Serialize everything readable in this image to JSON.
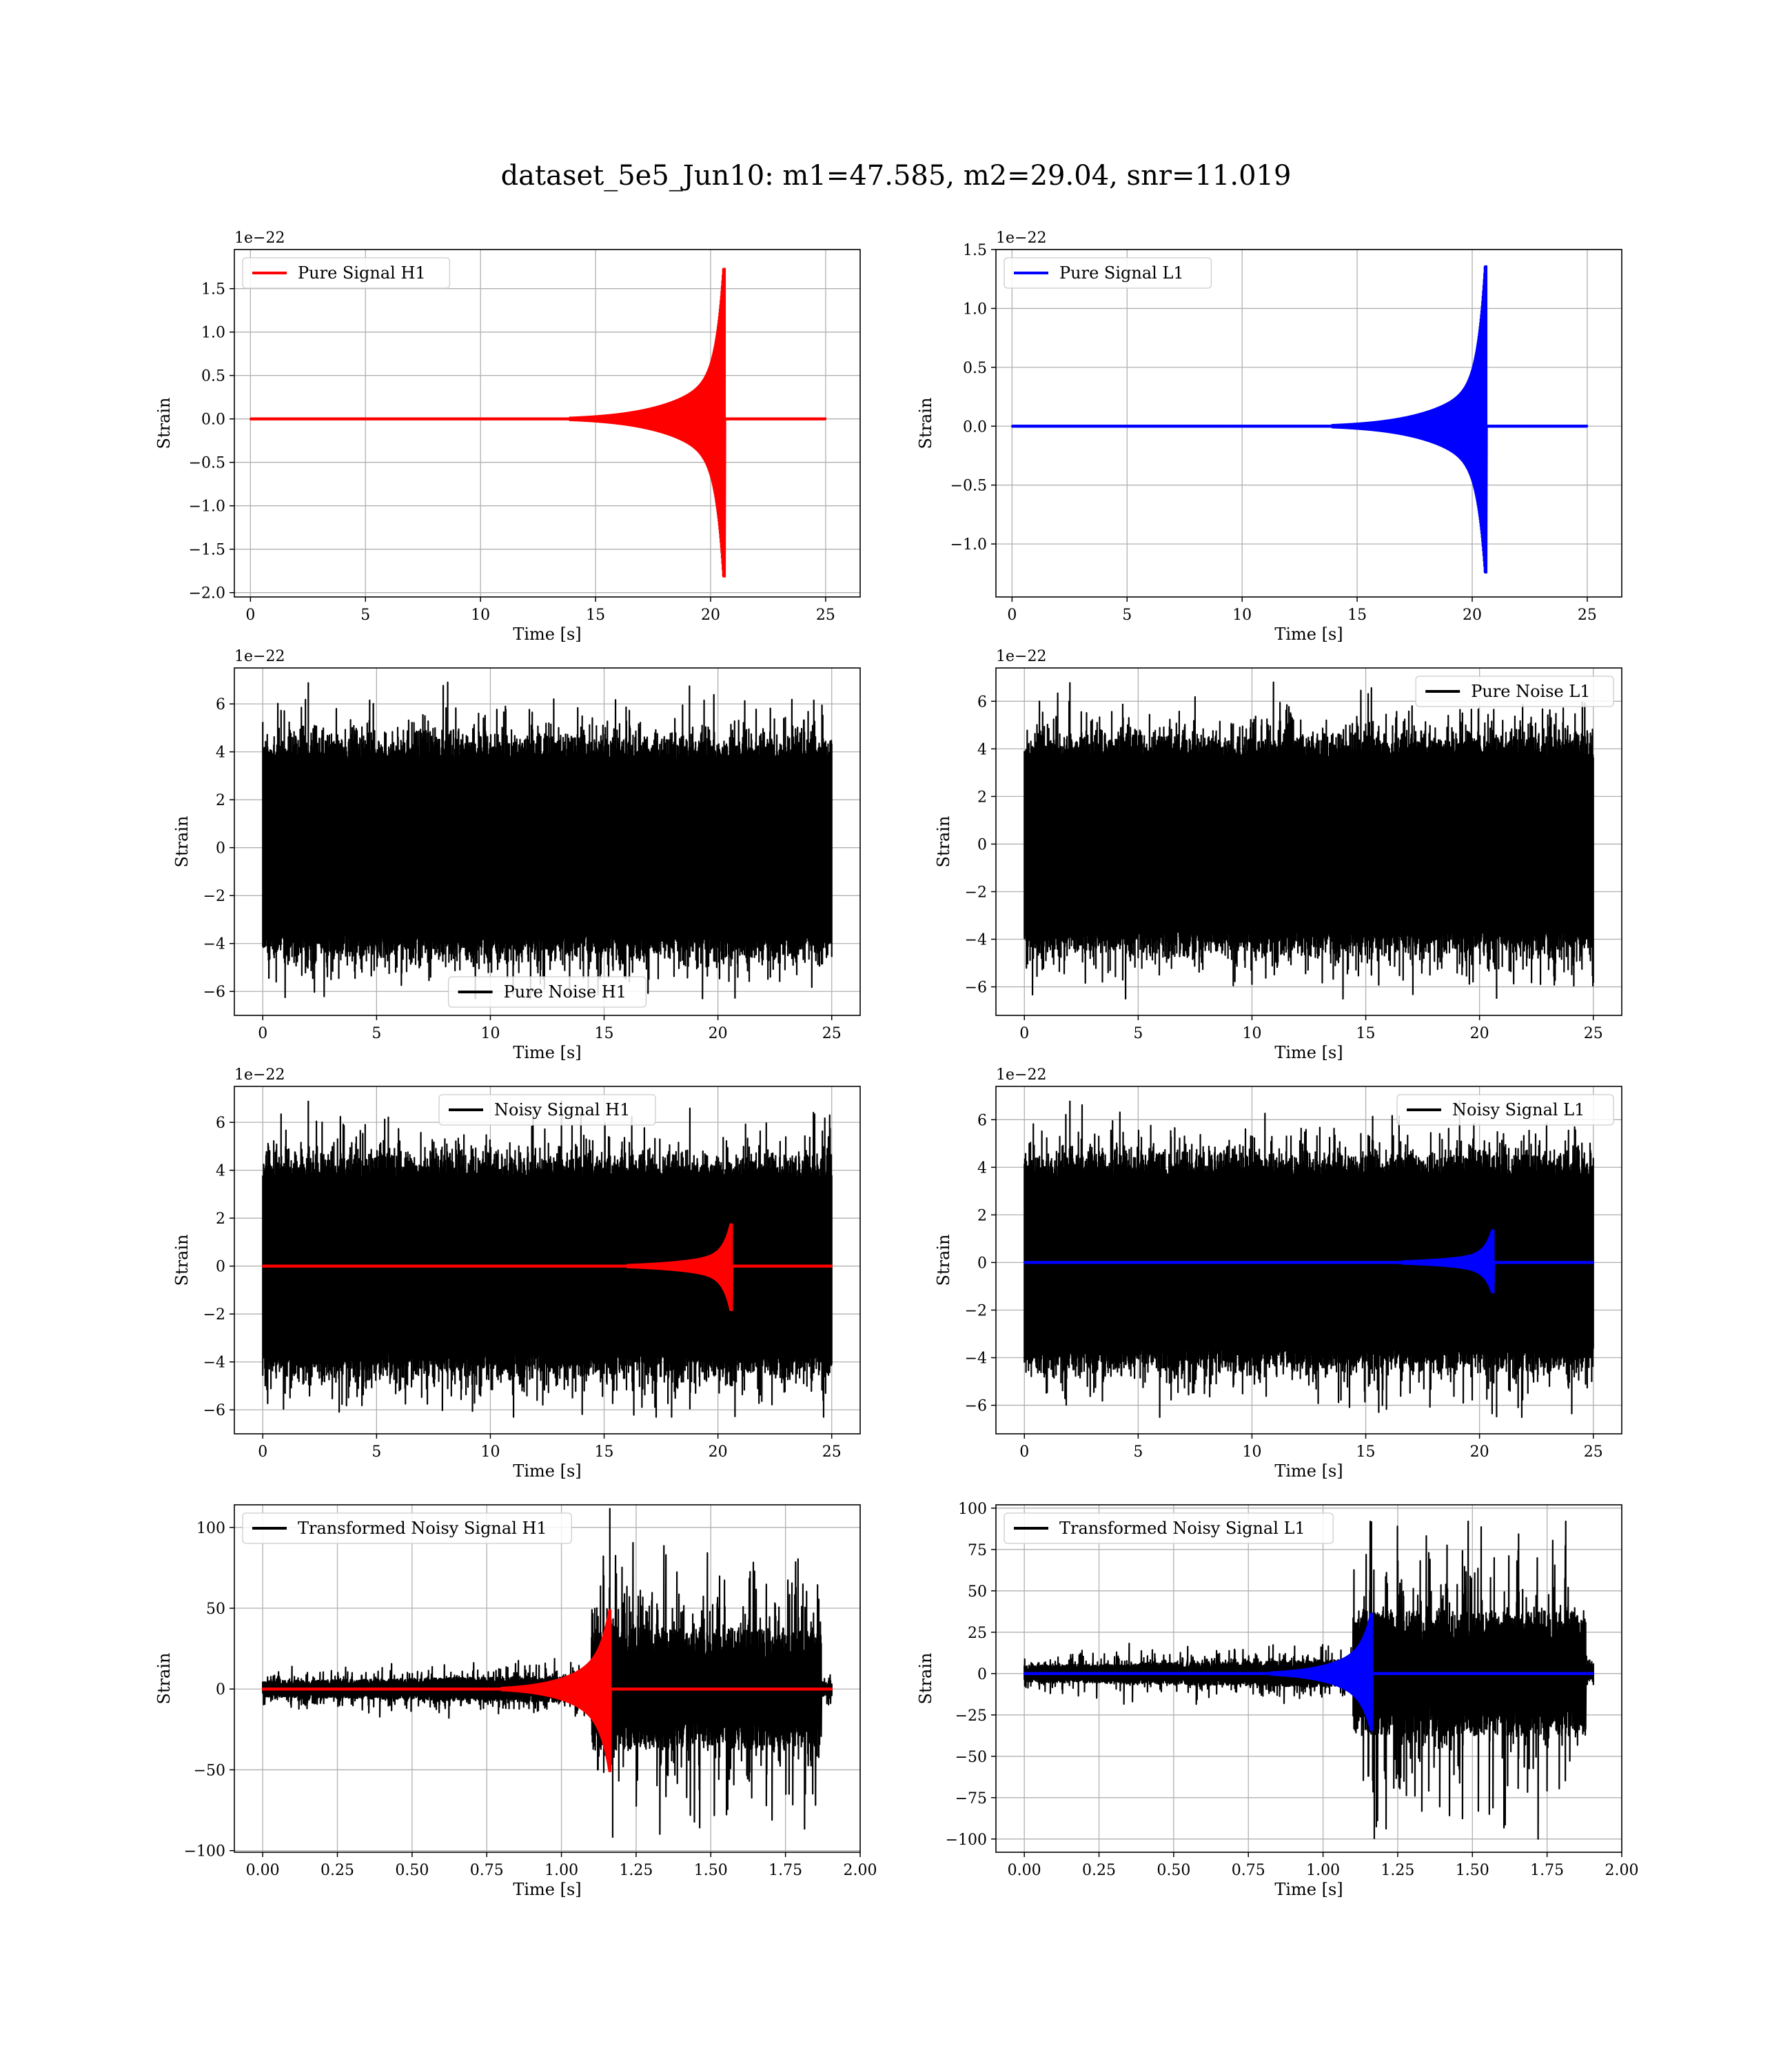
{
  "figure": {
    "suptitle": "dataset_5e5_Jun10: m1=47.585, m2=29.04, snr=11.019",
    "colors": {
      "h1": "#ff0000",
      "l1": "#0000ff",
      "noise": "#000000",
      "grid": "#b0b0b0"
    }
  },
  "chart_data": [
    {
      "id": "pure-signal-h1",
      "type": "line",
      "xlabel": "Time [s]",
      "ylabel": "Strain",
      "offset_text": "1e−22",
      "xlim": [
        -0.7,
        26.5
      ],
      "ylim": [
        -2.05,
        1.95
      ],
      "xticks": [
        0,
        5,
        10,
        15,
        20,
        25
      ],
      "xtick_labels": [
        "0",
        "5",
        "10",
        "15",
        "20",
        "25"
      ],
      "yticks": [
        -2.0,
        -1.5,
        -1.0,
        -0.5,
        0.0,
        0.5,
        1.0,
        1.5
      ],
      "ytick_labels": [
        "−2.0",
        "−1.5",
        "−1.0",
        "−0.5",
        "0.0",
        "0.5",
        "1.0",
        "1.5"
      ],
      "legend": {
        "label": "Pure Signal H1",
        "placement": "upper-left"
      },
      "series": [
        {
          "role": "signal",
          "color": "#ff0000",
          "x_range": [
            0,
            25
          ],
          "chirp": {
            "t_merger": 20.55,
            "peak_pos": 1.78,
            "peak_neg": -1.87,
            "pre_merger_amp": 0.55
          }
        }
      ]
    },
    {
      "id": "pure-signal-l1",
      "type": "line",
      "xlabel": "Time [s]",
      "ylabel": "Strain",
      "offset_text": "1e−22",
      "xlim": [
        -0.7,
        26.5
      ],
      "ylim": [
        -1.45,
        1.5
      ],
      "xticks": [
        0,
        5,
        10,
        15,
        20,
        25
      ],
      "xtick_labels": [
        "0",
        "5",
        "10",
        "15",
        "20",
        "25"
      ],
      "yticks": [
        -1.0,
        -0.5,
        0.0,
        0.5,
        1.0,
        1.5
      ],
      "ytick_labels": [
        "−1.0",
        "−0.5",
        "0.0",
        "0.5",
        "1.0",
        "1.5"
      ],
      "legend": {
        "label": "Pure Signal L1",
        "placement": "upper-left"
      },
      "series": [
        {
          "role": "signal",
          "color": "#0000ff",
          "x_range": [
            0,
            25
          ],
          "chirp": {
            "t_merger": 20.55,
            "peak_pos": 1.4,
            "peak_neg": -1.28,
            "pre_merger_amp": 0.4
          }
        }
      ]
    },
    {
      "id": "pure-noise-h1",
      "type": "line",
      "xlabel": "Time [s]",
      "ylabel": "Strain",
      "offset_text": "1e−22",
      "xlim": [
        -1.25,
        26.25
      ],
      "ylim": [
        -7.0,
        7.5
      ],
      "xticks": [
        0,
        5,
        10,
        15,
        20,
        25
      ],
      "xtick_labels": [
        "0",
        "5",
        "10",
        "15",
        "20",
        "25"
      ],
      "yticks": [
        -6,
        -4,
        -2,
        0,
        2,
        4,
        6
      ],
      "ytick_labels": [
        "−6",
        "−4",
        "−2",
        "0",
        "2",
        "4",
        "6"
      ],
      "legend": {
        "label": "Pure Noise H1",
        "placement": "lower-center"
      },
      "series": [
        {
          "role": "noise",
          "color": "#000000",
          "x_range": [
            0,
            25
          ],
          "noise": {
            "core_amp": 3.6,
            "max_pos": 6.9,
            "max_neg": -6.3
          }
        }
      ]
    },
    {
      "id": "pure-noise-l1",
      "type": "line",
      "xlabel": "Time [s]",
      "ylabel": "Strain",
      "offset_text": "1e−22",
      "xlim": [
        -1.25,
        26.25
      ],
      "ylim": [
        -7.2,
        7.4
      ],
      "xticks": [
        0,
        5,
        10,
        15,
        20,
        25
      ],
      "xtick_labels": [
        "0",
        "5",
        "10",
        "15",
        "20",
        "25"
      ],
      "yticks": [
        -6,
        -4,
        -2,
        0,
        2,
        4,
        6
      ],
      "ytick_labels": [
        "−6",
        "−4",
        "−2",
        "0",
        "2",
        "4",
        "6"
      ],
      "legend": {
        "label": "Pure Noise L1",
        "placement": "upper-right"
      },
      "series": [
        {
          "role": "noise",
          "color": "#000000",
          "x_range": [
            0,
            25
          ],
          "noise": {
            "core_amp": 3.6,
            "max_pos": 6.8,
            "max_neg": -6.5
          }
        }
      ]
    },
    {
      "id": "noisy-signal-h1",
      "type": "line",
      "xlabel": "Time [s]",
      "ylabel": "Strain",
      "offset_text": "1e−22",
      "xlim": [
        -1.25,
        26.25
      ],
      "ylim": [
        -7.0,
        7.5
      ],
      "xticks": [
        0,
        5,
        10,
        15,
        20,
        25
      ],
      "xtick_labels": [
        "0",
        "5",
        "10",
        "15",
        "20",
        "25"
      ],
      "yticks": [
        -6,
        -4,
        -2,
        0,
        2,
        4,
        6
      ],
      "ytick_labels": [
        "−6",
        "−4",
        "−2",
        "0",
        "2",
        "4",
        "6"
      ],
      "legend": {
        "label": "Noisy Signal H1",
        "placement": "upper-center"
      },
      "series": [
        {
          "role": "noise",
          "color": "#000000",
          "x_range": [
            0,
            25
          ],
          "noise": {
            "core_amp": 3.6,
            "max_pos": 6.9,
            "max_neg": -6.3
          }
        },
        {
          "role": "signal",
          "color": "#ff0000",
          "x_range": [
            0,
            25
          ],
          "chirp": {
            "t_merger": 20.55,
            "peak_pos": 1.8,
            "peak_neg": -1.9,
            "pre_merger_amp": 0.55
          }
        }
      ]
    },
    {
      "id": "noisy-signal-l1",
      "type": "line",
      "xlabel": "Time [s]",
      "ylabel": "Strain",
      "offset_text": "1e−22",
      "xlim": [
        -1.25,
        26.25
      ],
      "ylim": [
        -7.2,
        7.4
      ],
      "xticks": [
        0,
        5,
        10,
        15,
        20,
        25
      ],
      "xtick_labels": [
        "0",
        "5",
        "10",
        "15",
        "20",
        "25"
      ],
      "yticks": [
        -6,
        -4,
        -2,
        0,
        2,
        4,
        6
      ],
      "ytick_labels": [
        "−6",
        "−4",
        "−2",
        "0",
        "2",
        "4",
        "6"
      ],
      "legend": {
        "label": "Noisy Signal L1",
        "placement": "upper-right"
      },
      "series": [
        {
          "role": "noise",
          "color": "#000000",
          "x_range": [
            0,
            25
          ],
          "noise": {
            "core_amp": 3.6,
            "max_pos": 6.8,
            "max_neg": -6.5
          }
        },
        {
          "role": "signal",
          "color": "#0000ff",
          "x_range": [
            0,
            25
          ],
          "chirp": {
            "t_merger": 20.55,
            "peak_pos": 1.4,
            "peak_neg": -1.3,
            "pre_merger_amp": 0.4
          }
        }
      ]
    },
    {
      "id": "transformed-noisy-signal-h1",
      "type": "line",
      "xlabel": "Time [s]",
      "ylabel": "Strain",
      "offset_text": "",
      "xlim": [
        -0.095,
        2.0
      ],
      "ylim": [
        -101,
        114
      ],
      "xticks": [
        0,
        0.25,
        0.5,
        0.75,
        1.0,
        1.25,
        1.5,
        1.75,
        2.0
      ],
      "xtick_labels": [
        "0.00",
        "0.25",
        "0.50",
        "0.75",
        "1.00",
        "1.25",
        "1.50",
        "1.75",
        "2.00"
      ],
      "yticks": [
        -100,
        -50,
        0,
        50,
        100
      ],
      "ytick_labels": [
        "−100",
        "−50",
        "0",
        "50",
        "100"
      ],
      "legend": {
        "label": "Transformed Noisy Signal H1",
        "placement": "upper-left"
      },
      "series": [
        {
          "role": "transformed-noise",
          "color": "#000000",
          "x_range": [
            0,
            1.905
          ],
          "noise": {
            "pre_amp": 5,
            "post_amp": 38,
            "t_jump": 1.1,
            "t_end_burst": 1.87,
            "max_pos": 112,
            "max_neg": -92
          }
        },
        {
          "role": "signal",
          "color": "#ff0000",
          "x_range": [
            0,
            1.905
          ],
          "chirp": {
            "t_merger": 1.16,
            "peak_pos": 50,
            "peak_neg": -52,
            "pre_merger_amp": 25
          }
        }
      ]
    },
    {
      "id": "transformed-noisy-signal-l1",
      "type": "line",
      "xlabel": "Time [s]",
      "ylabel": "Strain",
      "offset_text": "",
      "xlim": [
        -0.095,
        2.0
      ],
      "ylim": [
        -108,
        102
      ],
      "xticks": [
        0,
        0.25,
        0.5,
        0.75,
        1.0,
        1.25,
        1.5,
        1.75,
        2.0
      ],
      "xtick_labels": [
        "0.00",
        "0.25",
        "0.50",
        "0.75",
        "1.00",
        "1.25",
        "1.50",
        "1.75",
        "2.00"
      ],
      "yticks": [
        -100,
        -75,
        -50,
        -25,
        0,
        25,
        50,
        75,
        100
      ],
      "ytick_labels": [
        "−100",
        "−75",
        "−50",
        "−25",
        "0",
        "25",
        "50",
        "75",
        "100"
      ],
      "legend": {
        "label": "Transformed Noisy Signal L1",
        "placement": "upper-left"
      },
      "series": [
        {
          "role": "transformed-noise",
          "color": "#000000",
          "x_range": [
            0,
            1.905
          ],
          "noise": {
            "pre_amp": 5,
            "post_amp": 38,
            "t_jump": 1.1,
            "t_end_burst": 1.88,
            "max_pos": 92,
            "max_neg": -100
          }
        },
        {
          "role": "signal",
          "color": "#0000ff",
          "x_range": [
            0,
            1.905
          ],
          "chirp": {
            "t_merger": 1.16,
            "peak_pos": 37,
            "peak_neg": -35,
            "pre_merger_amp": 18
          }
        }
      ]
    }
  ]
}
